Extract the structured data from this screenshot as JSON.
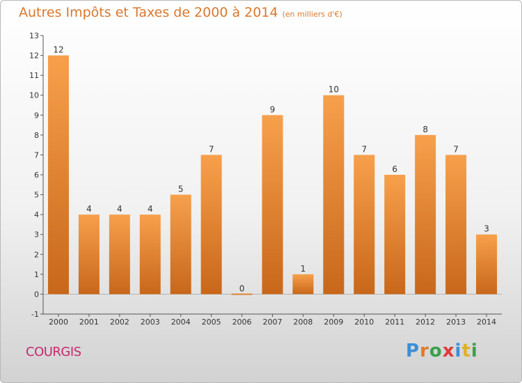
{
  "title": "Autres Impôts et Taxes de 2000 à 2014",
  "unit_note": "(en milliers d'€)",
  "commune": "COURGIS",
  "logo": {
    "text": "Proxiti",
    "letters": [
      {
        "ch": "P",
        "color": "#3a8fd6"
      },
      {
        "ch": "r",
        "color": "#e07a2a"
      },
      {
        "ch": "o",
        "color": "#3aa04a"
      },
      {
        "ch": "x",
        "color": "#e03a3a"
      },
      {
        "ch": "i",
        "color": "#3a8fd6"
      },
      {
        "ch": "t",
        "color": "#e0b02a"
      },
      {
        "ch": "i",
        "color": "#3aa04a"
      }
    ]
  },
  "colors": {
    "bar_light": "#f7a04c",
    "bar_dark": "#c8671a",
    "title": "#d9782d",
    "commune": "#c8286e"
  },
  "chart_data": {
    "type": "bar",
    "title": "Autres Impôts et Taxes de 2000 à 2014",
    "categories": [
      "2000",
      "2001",
      "2002",
      "2003",
      "2004",
      "2005",
      "2006",
      "2007",
      "2008",
      "2009",
      "2010",
      "2011",
      "2012",
      "2013",
      "2014"
    ],
    "values": [
      12,
      4,
      4,
      4,
      5,
      7,
      0,
      9,
      1,
      10,
      7,
      6,
      8,
      7,
      3
    ],
    "ylim": [
      -1,
      13
    ],
    "yticks": [
      -1,
      0,
      1,
      2,
      3,
      4,
      5,
      6,
      7,
      8,
      9,
      10,
      11,
      12,
      13
    ],
    "grid": false,
    "data_labels": true
  }
}
